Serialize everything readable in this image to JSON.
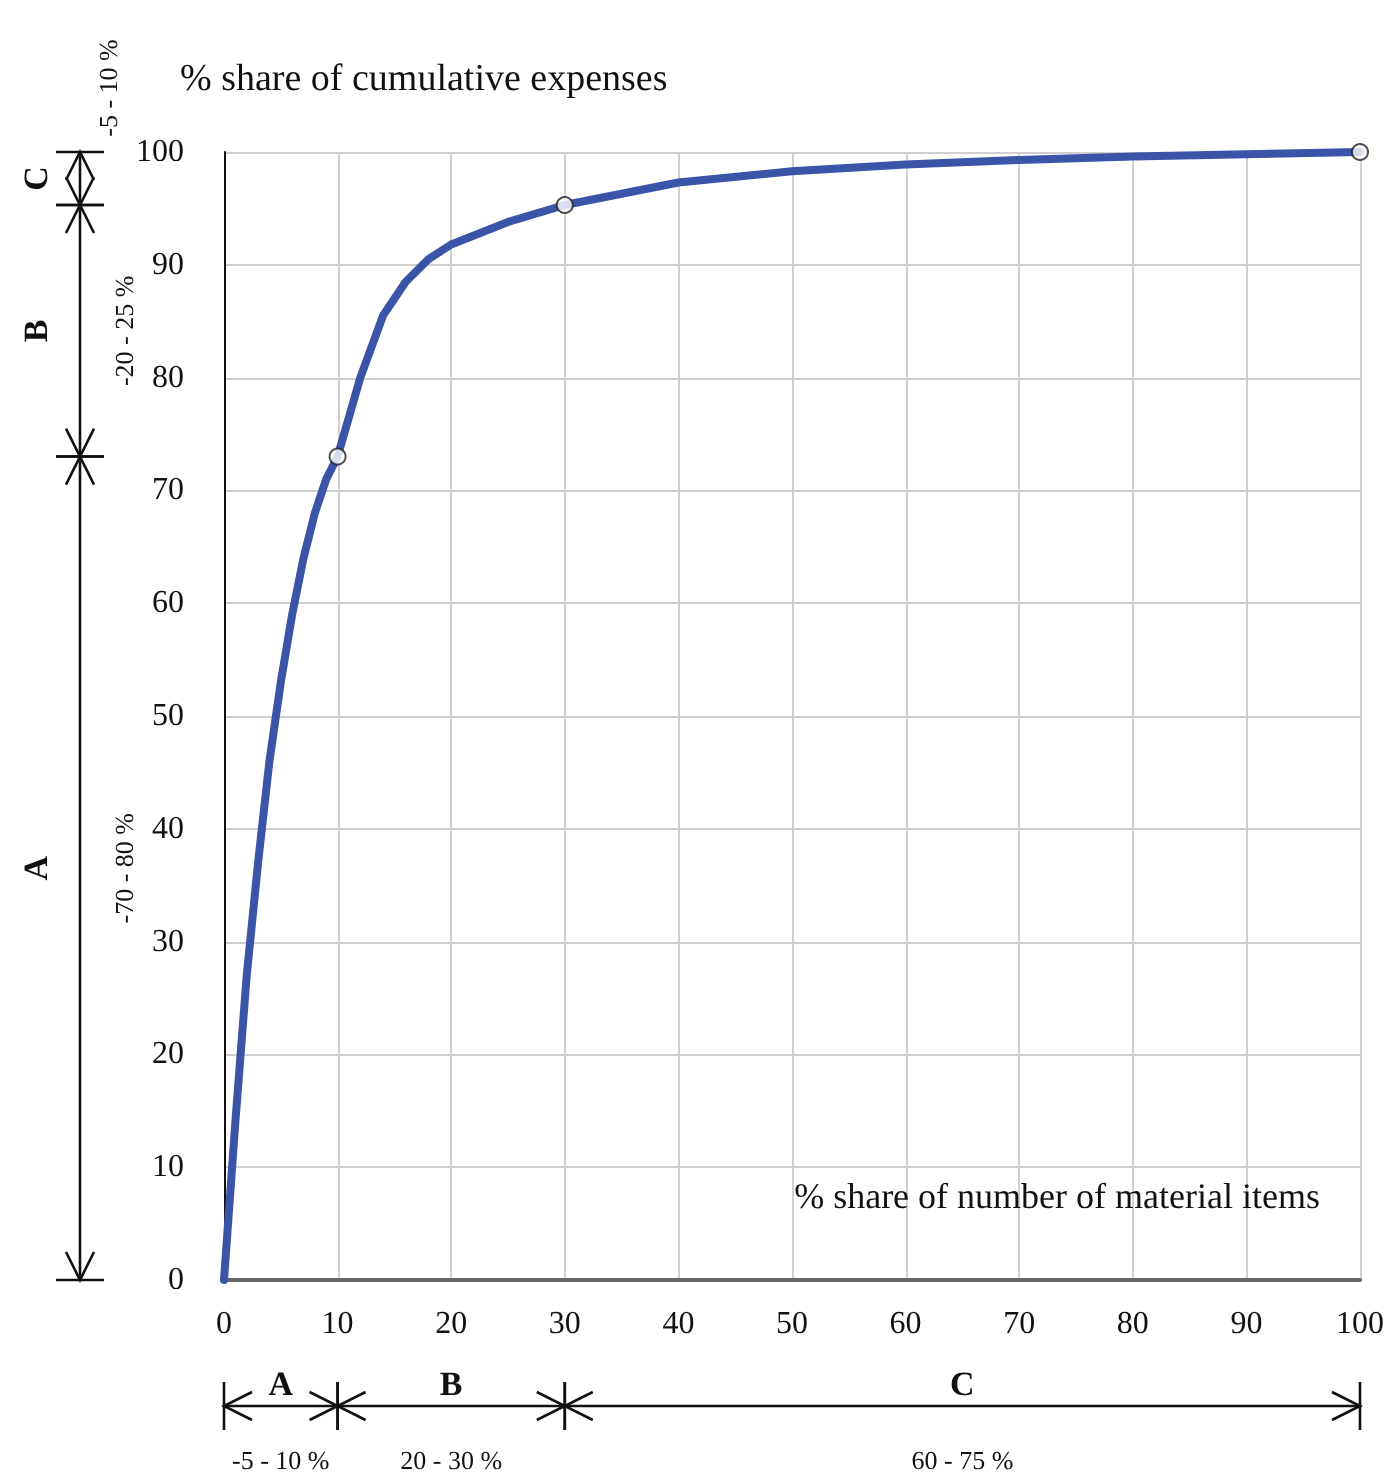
{
  "chart_data": {
    "type": "line",
    "xlabel": "% share of number of material items",
    "ylabel": "% share of cumulative expenses",
    "xlim": [
      0,
      100
    ],
    "xticks": [
      0,
      10,
      20,
      30,
      40,
      50,
      60,
      70,
      80,
      90,
      100
    ],
    "ylim": [
      0,
      100
    ],
    "yticks": [
      0,
      10,
      20,
      30,
      40,
      50,
      60,
      70,
      80,
      90,
      100
    ],
    "grid": true,
    "series": [
      {
        "color": "#3a54a8",
        "x": [
          0,
          1,
          2,
          3,
          4,
          5,
          6,
          7,
          8,
          9,
          10,
          12,
          14,
          16,
          18,
          20,
          25,
          30,
          40,
          50,
          60,
          70,
          80,
          90,
          100
        ],
        "values": [
          0,
          14,
          27,
          37,
          46,
          53,
          59,
          64,
          68,
          71,
          73,
          80,
          85.5,
          88.5,
          90.5,
          91.8,
          93.8,
          95.3,
          97.3,
          98.3,
          98.9,
          99.3,
          99.6,
          99.8,
          100
        ]
      },
      {
        "type": "scatter",
        "color": "#ffffff",
        "marker": "circle",
        "x": [
          10,
          30,
          100
        ],
        "values": [
          73,
          95.3,
          100
        ]
      }
    ],
    "annotations": [
      "A",
      "-70 - 80 %",
      "B",
      "-20 - 25 %",
      "C",
      "-5 - 10 %",
      "A",
      "-5 - 10 %",
      "B",
      "20 - 30 %",
      "C",
      "60 - 75 %"
    ]
  }
}
